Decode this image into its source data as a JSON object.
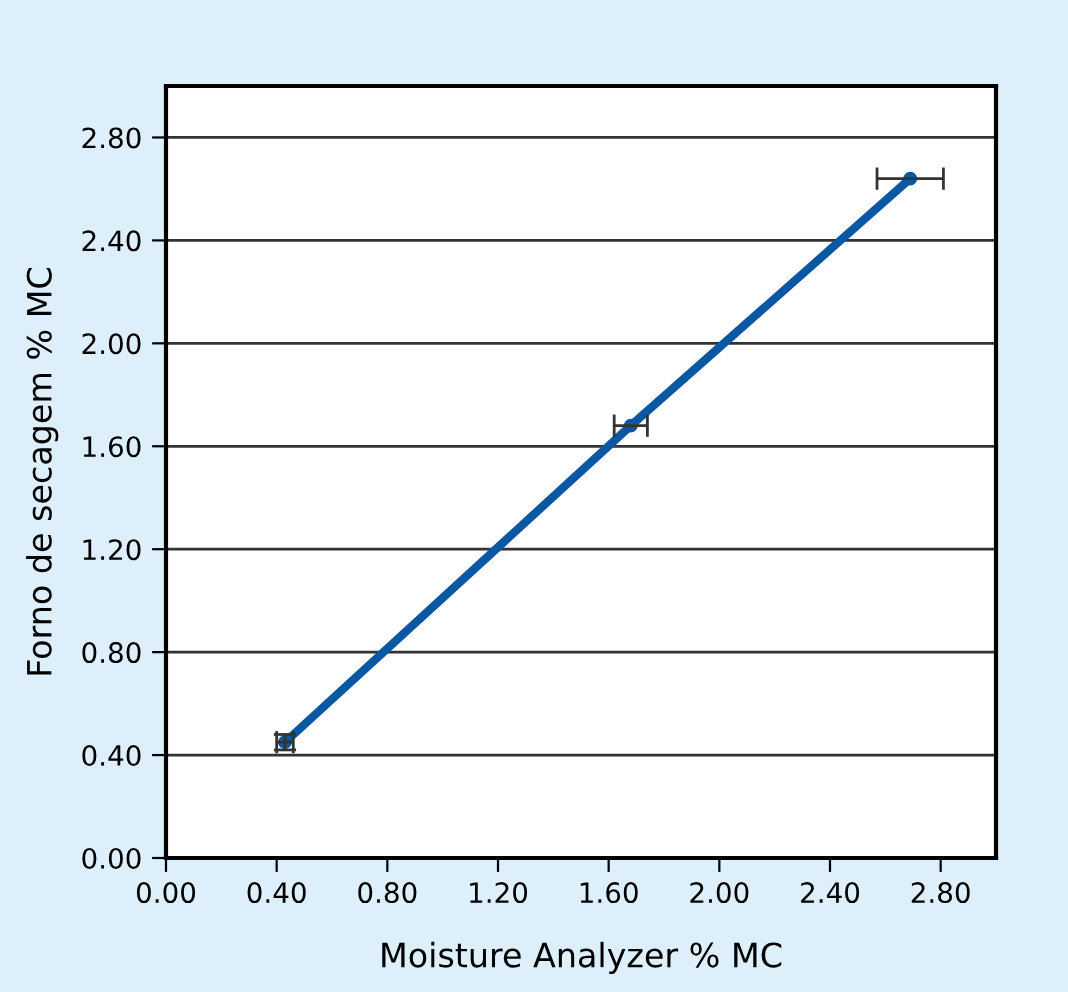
{
  "chart_data": {
    "type": "line",
    "xlabel": "Moisture Analyzer % MC",
    "ylabel": "Forno de secagem % MC",
    "x": [
      0.43,
      1.68,
      2.69
    ],
    "series": [
      {
        "color": "#0a57a4",
        "values": [
          0.45,
          1.68,
          2.64
        ],
        "xerrors": [
          0.03,
          0.06,
          0.12
        ],
        "errors": [
          0.03,
          null,
          null
        ]
      }
    ],
    "xlim": [
      0,
      3.0
    ],
    "ylim": [
      0,
      3.0
    ],
    "xticks": [
      {
        "value": 0,
        "label": "0.00"
      },
      {
        "value": 0.4,
        "label": "0.40"
      },
      {
        "value": 0.8,
        "label": "0.80"
      },
      {
        "value": 1.2,
        "label": "1.20"
      },
      {
        "value": 1.6,
        "label": "1.60"
      },
      {
        "value": 2.0,
        "label": "2.00"
      },
      {
        "value": 2.4,
        "label": "2.40"
      },
      {
        "value": 2.8,
        "label": "2.80"
      }
    ],
    "yticks": [
      {
        "value": 0,
        "label": "0.00"
      },
      {
        "value": 0.4,
        "label": "0.40"
      },
      {
        "value": 0.8,
        "label": "0.80"
      },
      {
        "value": 1.2,
        "label": "1.20"
      },
      {
        "value": 1.6,
        "label": "1.60"
      },
      {
        "value": 2.0,
        "label": "2.00"
      },
      {
        "value": 2.4,
        "label": "2.40"
      },
      {
        "value": 2.8,
        "label": "2.80"
      }
    ],
    "grid": "y",
    "marker": "circle",
    "line_style": "solid",
    "legend": false
  }
}
